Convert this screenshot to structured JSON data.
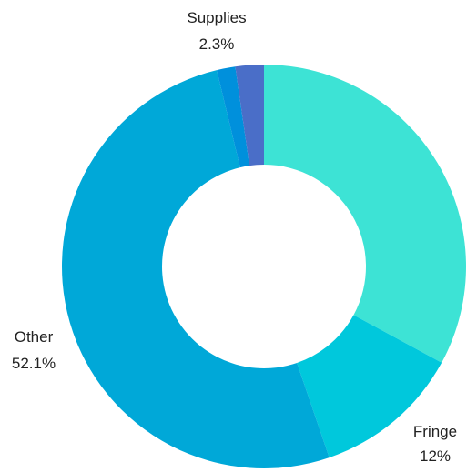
{
  "chart_data": {
    "type": "pie",
    "style": "donut",
    "title": "",
    "start": "12 o'clock, clockwise",
    "slices": [
      {
        "label": "",
        "value": 33.3,
        "value_label": "",
        "color": "#3de3d5"
      },
      {
        "label": "Fringe",
        "value": 12.0,
        "value_label": "12%",
        "color": "#00c8dc"
      },
      {
        "label": "Other",
        "value": 52.1,
        "value_label": "52.1%",
        "color": "#00a8d8"
      },
      {
        "label": "",
        "value": 1.5,
        "value_label": "",
        "color": "#0090dc"
      },
      {
        "label": "Supplies",
        "value": 2.3,
        "value_label": "2.3%",
        "color": "#4a6ec8"
      }
    ]
  }
}
